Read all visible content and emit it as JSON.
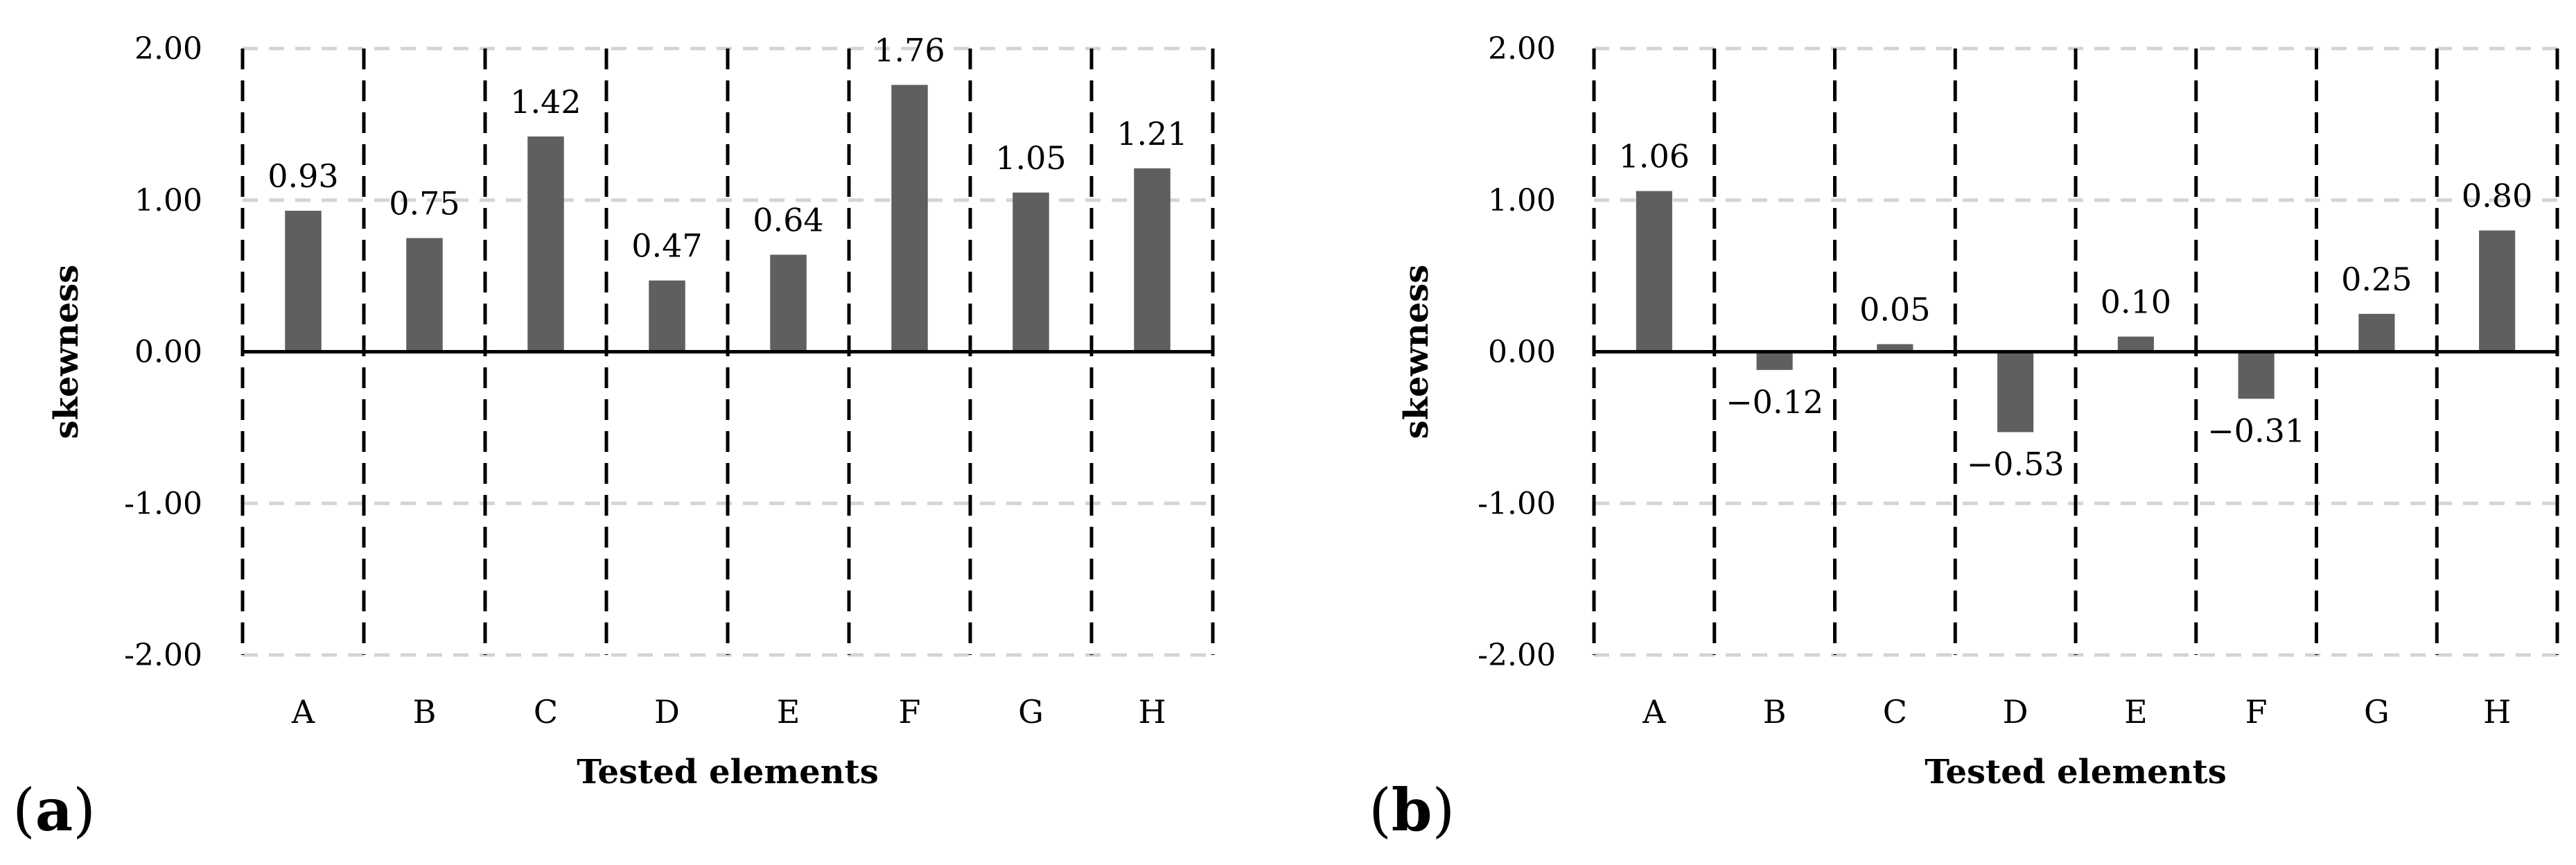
{
  "chart_data": [
    {
      "panel": "(a)",
      "panel_letter": "a",
      "type": "bar",
      "title": "",
      "xlabel": "Tested elements",
      "ylabel": "skewness",
      "categories": [
        "A",
        "B",
        "C",
        "D",
        "E",
        "F",
        "G",
        "H"
      ],
      "values": [
        0.93,
        0.75,
        1.42,
        0.47,
        0.64,
        1.76,
        1.05,
        1.21
      ],
      "value_labels": [
        "0.93",
        "0.75",
        "1.42",
        "0.47",
        "0.64",
        "1.76",
        "1.05",
        "1.21"
      ],
      "ylim": [
        -2.0,
        2.0
      ],
      "yticks": [
        2.0,
        1.0,
        0.0,
        -1.0,
        -2.0
      ],
      "ytick_labels": [
        "2.00",
        "1.00",
        "0.00",
        "-1.00",
        "-2.00"
      ],
      "grid": true,
      "bar_color": "#5f5f5f"
    },
    {
      "panel": "(b)",
      "panel_letter": "b",
      "type": "bar",
      "title": "",
      "xlabel": "Tested elements",
      "ylabel": "skewness",
      "categories": [
        "A",
        "B",
        "C",
        "D",
        "E",
        "F",
        "G",
        "H"
      ],
      "values": [
        1.06,
        -0.12,
        0.05,
        -0.53,
        0.1,
        -0.31,
        0.25,
        0.8
      ],
      "value_labels": [
        "1.06",
        "−0.12",
        "0.05",
        "−0.53",
        "0.10",
        "−0.31",
        "0.25",
        "0.80"
      ],
      "ylim": [
        -2.0,
        2.0
      ],
      "yticks": [
        2.0,
        1.0,
        0.0,
        -1.0,
        -2.0
      ],
      "ytick_labels": [
        "2.00",
        "1.00",
        "0.00",
        "-1.00",
        "-2.00"
      ],
      "grid": true,
      "bar_color": "#5f5f5f"
    }
  ],
  "colors": {
    "bar": "#5f5f5f",
    "gridline": "#d4d4d4",
    "divider": "#000000",
    "zero_line": "#000000",
    "text": "#000000"
  }
}
